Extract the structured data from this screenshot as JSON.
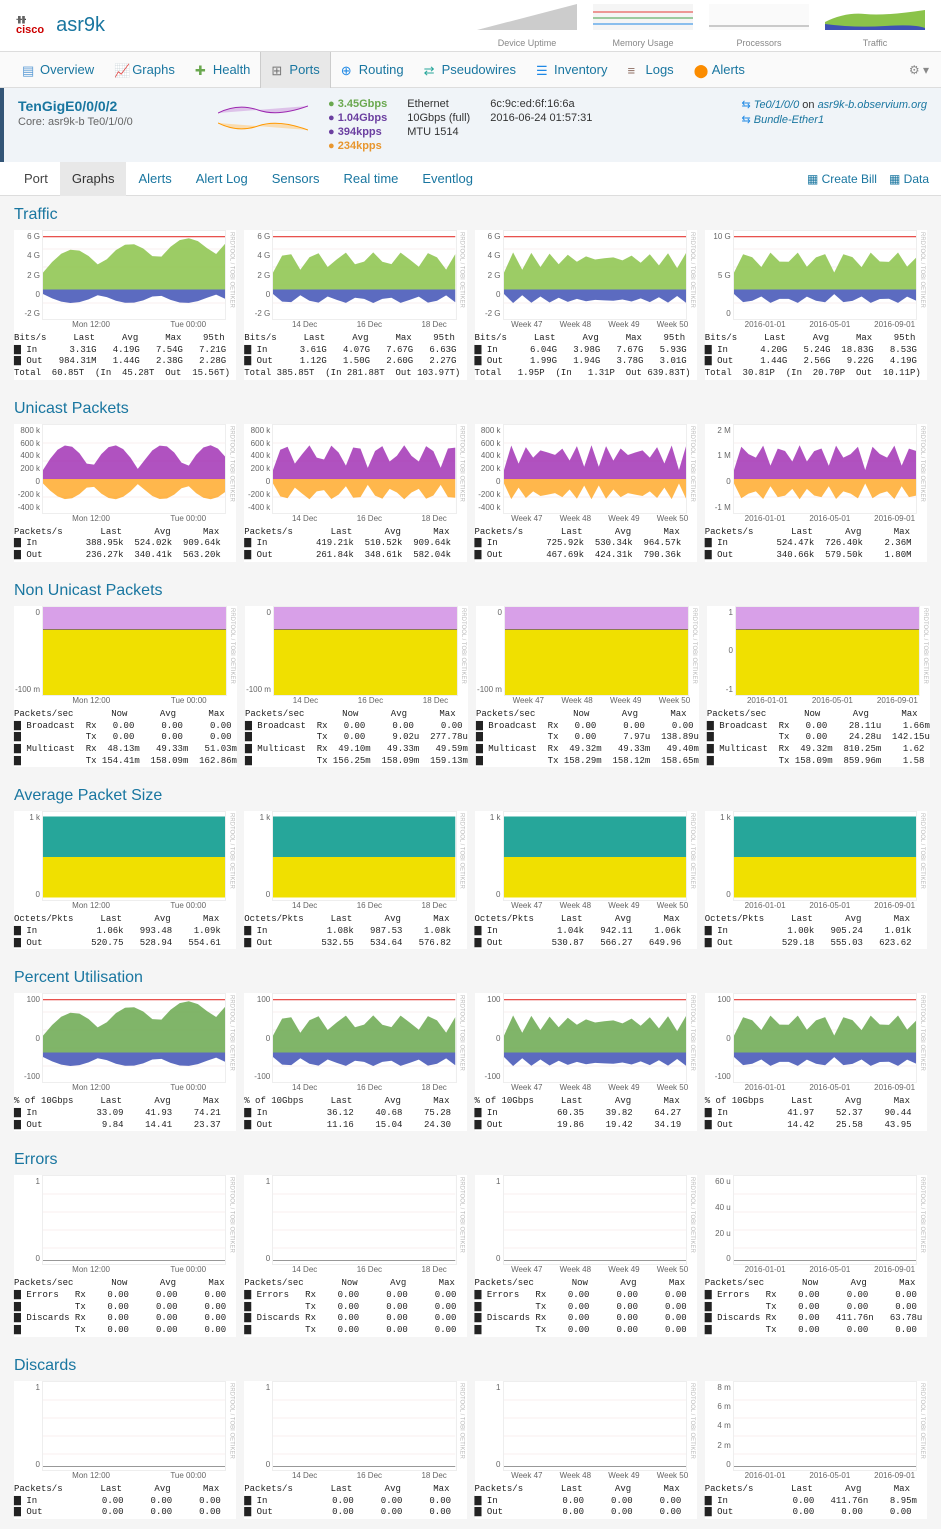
{
  "header": {
    "vendor": "cisco",
    "device_name": "asr9k",
    "mini_charts": [
      "Device Uptime",
      "Memory Usage",
      "Processors",
      "Traffic"
    ]
  },
  "nav": {
    "tabs": [
      {
        "label": "Overview",
        "icon": "overview",
        "color": "#5b9bd5"
      },
      {
        "label": "Graphs",
        "icon": "graphs",
        "color": "#6aa84f"
      },
      {
        "label": "Health",
        "icon": "health",
        "color": "#6aa84f"
      },
      {
        "label": "Ports",
        "icon": "ports",
        "color": "#777",
        "active": true
      },
      {
        "label": "Routing",
        "icon": "routing",
        "color": "#1e88e5"
      },
      {
        "label": "Pseudowires",
        "icon": "pseudowires",
        "color": "#26a69a"
      },
      {
        "label": "Inventory",
        "icon": "inventory",
        "color": "#1e88e5"
      },
      {
        "label": "Logs",
        "icon": "logs",
        "color": "#8d6e63"
      },
      {
        "label": "Alerts",
        "icon": "alerts",
        "color": "#fb8c00"
      }
    ]
  },
  "port": {
    "name": "TenGigE0/0/0/2",
    "core_label": "Core: asr9k-b Te0/1/0/0",
    "rates": [
      {
        "value": "3.45Gbps",
        "color": "#6aa84f",
        "icon": "up"
      },
      {
        "value": "1.04Gbps",
        "color": "#6b3fa0",
        "icon": "down"
      },
      {
        "value": "394kpps",
        "color": "#6b3fa0",
        "icon": "down-arrow"
      },
      {
        "value": "234kpps",
        "color": "#e8962e",
        "icon": "down-arrow"
      }
    ],
    "info1": [
      "Ethernet",
      "10Gbps (full)",
      "MTU 1514"
    ],
    "info2": [
      "6c:9c:ed:6f:16:6a",
      "2016-06-24 01:57:31"
    ],
    "related": [
      {
        "icon": "link",
        "text": "Te0/1/0/0",
        "on": " on ",
        "host": "asr9k-b.observium.org"
      },
      {
        "icon": "bundle",
        "text": "Bundle-Ether1"
      }
    ]
  },
  "sub_tabs": [
    "Port",
    "Graphs",
    "Alerts",
    "Alert Log",
    "Sensors",
    "Real time",
    "Eventlog"
  ],
  "sub_tabs_active": "Graphs",
  "right_actions": [
    {
      "icon": "bill",
      "label": "Create Bill"
    },
    {
      "icon": "data",
      "label": "Data"
    }
  ],
  "sections": [
    {
      "title": "Traffic",
      "chart_type": "traffic",
      "y_labels": [
        "6 G",
        "4 G",
        "2 G",
        "0",
        "-2 G"
      ],
      "x_labels_sets": [
        [
          "Mon 12:00",
          "Tue 00:00"
        ],
        [
          "14 Dec",
          "16 Dec",
          "18 Dec"
        ],
        [
          "Week 47",
          "Week 48",
          "Week 49",
          "Week 50"
        ],
        [
          "2016-01-01",
          "2016-05-01",
          "2016-09-01"
        ]
      ],
      "y_labels_col4": [
        "10 G",
        "5 G",
        "0"
      ],
      "colors": {
        "in": "#8bc34a",
        "out": "#3f51b5",
        "bg": "#fff",
        "grid": "#f0d0d0"
      },
      "stats": [
        "Bits/s     Last     Avg     Max    95th\n▇ In      3.31G   4.19G   7.54G   7.21G\n▇ Out   984.31M   1.44G   2.38G   2.28G\nTotal  60.85T  (In  45.28T  Out  15.56T)",
        "Bits/s     Last     Avg     Max    95th\n▇ In      3.61G   4.07G   7.67G   6.63G\n▇ Out     1.12G   1.50G   2.60G   2.27G\nTotal 385.85T  (In 281.88T  Out 103.97T)",
        "Bits/s     Last     Avg     Max    95th\n▇ In      6.04G   3.98G   7.67G   5.93G\n▇ Out     1.99G   1.94G   3.78G   3.01G\nTotal   1.95P  (In   1.31P  Out 639.83T)",
        "Bits/s     Last     Avg     Max    95th\n▇ In      4.20G   5.24G  18.83G   8.53G\n▇ Out     1.44G   2.56G   9.22G   4.19G\nTotal  30.81P  (In  20.70P  Out  10.11P)"
      ]
    },
    {
      "title": "Unicast Packets",
      "chart_type": "unicast",
      "y_labels": [
        "800 k",
        "600 k",
        "400 k",
        "200 k",
        "0",
        "-200 k",
        "-400 k"
      ],
      "y_labels_col4": [
        "2 M",
        "1 M",
        "0",
        "-1 M"
      ],
      "colors": {
        "in": "#9c27b0",
        "out": "#ff9800",
        "bg": "#fff"
      },
      "stats": [
        "Packets/s       Last      Avg      Max\n▇ In         388.95k  524.02k  909.64k\n▇ Out        236.27k  340.41k  563.20k",
        "Packets/s       Last      Avg      Max\n▇ In         419.21k  510.52k  909.64k\n▇ Out        261.84k  348.61k  582.04k",
        "Packets/s       Last      Avg      Max\n▇ In         725.92k  530.34k  964.57k\n▇ Out        467.69k  424.31k  790.36k",
        "Packets/s       Last      Avg      Max\n▇ In         524.47k  726.40k    2.36M\n▇ Out        340.66k  579.50k    1.80M"
      ]
    },
    {
      "title": "Non Unicast Packets",
      "chart_type": "nonunicast",
      "y_labels": [
        "0",
        "-100 m"
      ],
      "y_labels_col4": [
        "1",
        "0",
        "-1"
      ],
      "colors": {
        "broadcast": "#d8a0e8",
        "multicast": "#f0e000",
        "bg": "#fff"
      },
      "stats": [
        "Packets/sec       Now      Avg      Max\n▇ Broadcast  Rx   0.00     0.00     0.00\n▇            Tx   0.00     0.00     0.00\n▇ Multicast  Rx  48.13m   49.33m   51.03m\n▇            Tx 154.41m  158.09m  162.86m",
        "Packets/sec       Now      Avg      Max\n▇ Broadcast  Rx   0.00     0.00     0.00\n▇            Tx   0.00     9.02u  277.78u\n▇ Multicast  Rx  49.10m   49.33m   49.59m\n▇            Tx 156.25m  158.09m  159.13m",
        "Packets/sec       Now      Avg      Max\n▇ Broadcast  Rx   0.00     0.00     0.00\n▇            Tx   0.00     7.97u  138.89u\n▇ Multicast  Rx  49.32m   49.33m   49.40m\n▇            Tx 158.29m  158.12m  158.65m",
        "Packets/sec       Now      Avg      Max\n▇ Broadcast  Rx   0.00    28.11u    1.66m\n▇            Tx   0.00    24.28u  142.15u\n▇ Multicast  Rx  49.32m  810.25m    1.62\n▇            Tx 158.09m  859.96m    1.58"
      ]
    },
    {
      "title": "Average Packet Size",
      "chart_type": "avgsize",
      "y_labels": [
        "1 k",
        "0"
      ],
      "colors": {
        "in": "#26a69a",
        "out": "#f0e000",
        "bg": "#fff"
      },
      "stats": [
        "Octets/Pkts     Last      Avg      Max\n▇ In           1.06k   993.48    1.09k\n▇ Out         520.75   528.94   554.61",
        "Octets/Pkts     Last      Avg      Max\n▇ In           1.08k   987.53    1.08k\n▇ Out         532.55   534.64   576.82",
        "Octets/Pkts     Last      Avg      Max\n▇ In           1.04k   942.11    1.06k\n▇ Out         530.87   566.27   649.96",
        "Octets/Pkts     Last      Avg      Max\n▇ In           1.00k   905.24    1.01k\n▇ Out         529.18   555.03   623.62"
      ]
    },
    {
      "title": "Percent Utilisation",
      "chart_type": "percent",
      "y_labels": [
        "100",
        "0",
        "-100"
      ],
      "colors": {
        "in": "#6aa84f",
        "out": "#3f51b5",
        "bg": "#fff"
      },
      "stats": [
        "% of 10Gbps     Last      Avg      Max\n▇ In           33.09    41.93    74.21\n▇ Out           9.84    14.41    23.37",
        "% of 10Gbps     Last      Avg      Max\n▇ In           36.12    40.68    75.28\n▇ Out          11.16    15.04    24.30",
        "% of 10Gbps     Last      Avg      Max\n▇ In           60.35    39.82    64.27\n▇ Out          19.86    19.42    34.19",
        "% of 10Gbps     Last      Avg      Max\n▇ In           41.97    52.37    90.44\n▇ Out          14.42    25.58    43.95"
      ]
    },
    {
      "title": "Errors",
      "chart_type": "errors",
      "y_labels": [
        "1",
        "0"
      ],
      "y_labels_col4": [
        "60 u",
        "40 u",
        "20 u",
        "0"
      ],
      "colors": {
        "errors": "#e53935",
        "discards": "#888",
        "bg": "#fff"
      },
      "stats": [
        "Packets/sec       Now      Avg      Max\n▇ Errors   Rx    0.00     0.00     0.00\n▇          Tx    0.00     0.00     0.00\n▇ Discards Rx    0.00     0.00     0.00\n▇          Tx    0.00     0.00     0.00",
        "Packets/sec       Now      Avg      Max\n▇ Errors   Rx    0.00     0.00     0.00\n▇          Tx    0.00     0.00     0.00\n▇ Discards Rx    0.00     0.00     0.00\n▇          Tx    0.00     0.00     0.00",
        "Packets/sec       Now      Avg      Max\n▇ Errors   Rx    0.00     0.00     0.00\n▇          Tx    0.00     0.00     0.00\n▇ Discards Rx    0.00     0.00     0.00\n▇          Tx    0.00     0.00     0.00",
        "Packets/sec       Now      Avg      Max\n▇ Errors   Rx    0.00     0.00     0.00\n▇          Tx    0.00     0.00     0.00\n▇ Discards Rx    0.00   411.76n   63.78u\n▇          Tx    0.00     0.00     0.00"
      ]
    },
    {
      "title": "Discards",
      "chart_type": "discards",
      "y_labels": [
        "1",
        "0"
      ],
      "y_labels_col4": [
        "8 m",
        "6 m",
        "4 m",
        "2 m",
        "0"
      ],
      "colors": {
        "in": "#9c27b0",
        "out": "#ff9800",
        "bg": "#fff"
      },
      "stats": [
        "Packets/s       Last      Avg      Max\n▇ In            0.00     0.00     0.00\n▇ Out           0.00     0.00     0.00",
        "Packets/s       Last      Avg      Max\n▇ In            0.00     0.00     0.00\n▇ Out           0.00     0.00     0.00",
        "Packets/s       Last      Avg      Max\n▇ In            0.00     0.00     0.00\n▇ Out           0.00     0.00     0.00",
        "Packets/s       Last      Avg      Max\n▇ In            0.00   411.76n    8.95m\n▇ Out           0.00     0.00     0.00"
      ]
    }
  ]
}
